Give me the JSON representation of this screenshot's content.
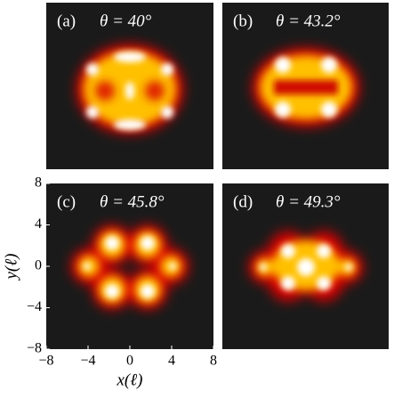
{
  "chart_data": {
    "type": "heatmap",
    "panels": [
      {
        "label": "(a)",
        "title": "θ = 40°"
      },
      {
        "label": "(b)",
        "title": "θ = 43.2°"
      },
      {
        "label": "(c)",
        "title": "θ = 45.8°"
      },
      {
        "label": "(d)",
        "title": "θ = 49.3°"
      }
    ],
    "xlabel": "x(ℓ)",
    "ylabel": "y(ℓ)",
    "xlim": [
      -8,
      8
    ],
    "ylim": [
      -8,
      8
    ],
    "xticks": [
      {
        "value": -8,
        "label": "−8"
      },
      {
        "value": -4,
        "label": "−4"
      },
      0,
      4,
      8
    ],
    "yticks": [
      {
        "value": -8,
        "label": "−8"
      },
      {
        "value": -4,
        "label": "−4"
      },
      0,
      4,
      8
    ]
  }
}
